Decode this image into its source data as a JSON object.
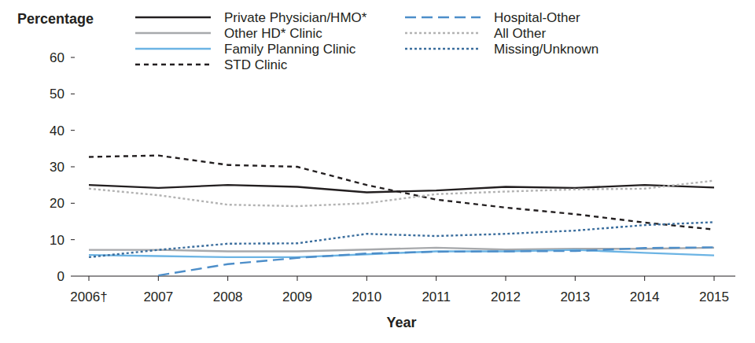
{
  "chart_data": {
    "type": "line",
    "y_label": "Percentage",
    "x_label": "Year",
    "categories": [
      "2006†",
      "2007",
      "2008",
      "2009",
      "2010",
      "2011",
      "2012",
      "2013",
      "2014",
      "2015"
    ],
    "ylim": [
      0,
      60
    ],
    "yticks": [
      0,
      10,
      20,
      30,
      40,
      50,
      60
    ],
    "grid": false,
    "legend": "top",
    "series": [
      {
        "name": "Private Physician/HMO*",
        "color": "#231f20",
        "line_style": "solid",
        "values": [
          25.0,
          24.2,
          25.0,
          24.5,
          23.0,
          23.5,
          24.5,
          24.2,
          25.0,
          24.3
        ]
      },
      {
        "name": "Other HD* Clinic",
        "color": "#a7a9ac",
        "line_style": "solid",
        "values": [
          7.2,
          7.2,
          6.8,
          6.8,
          7.3,
          7.8,
          7.3,
          7.5,
          7.5,
          7.8
        ]
      },
      {
        "name": "Family Planning Clinic",
        "color": "#6cb4e4",
        "line_style": "solid",
        "values": [
          5.8,
          5.5,
          5.2,
          5.2,
          6.0,
          6.8,
          6.8,
          7.2,
          6.4,
          5.7
        ]
      },
      {
        "name": "STD Clinic",
        "color": "#231f20",
        "line_style": "dashed",
        "values": [
          32.7,
          33.1,
          30.5,
          30.0,
          25.0,
          21.0,
          18.8,
          17.0,
          14.7,
          12.8
        ]
      },
      {
        "name": "Hospital-Other",
        "color": "#4d8ec9",
        "line_style": "longdash",
        "values": [
          null,
          0.2,
          3.3,
          5.0,
          6.2,
          6.7,
          6.8,
          6.9,
          7.7,
          7.9
        ]
      },
      {
        "name": "All Other",
        "color": "#b3b3b3",
        "line_style": "dotted",
        "values": [
          24.0,
          22.2,
          19.6,
          19.2,
          20.0,
          22.5,
          23.2,
          23.8,
          24.0,
          26.2
        ]
      },
      {
        "name": "Missing/Unknown",
        "color": "#3a6d9d",
        "line_style": "dotted",
        "values": [
          5.2,
          7.2,
          8.9,
          9.0,
          11.6,
          11.0,
          11.6,
          12.5,
          14.0,
          14.8
        ]
      }
    ]
  }
}
